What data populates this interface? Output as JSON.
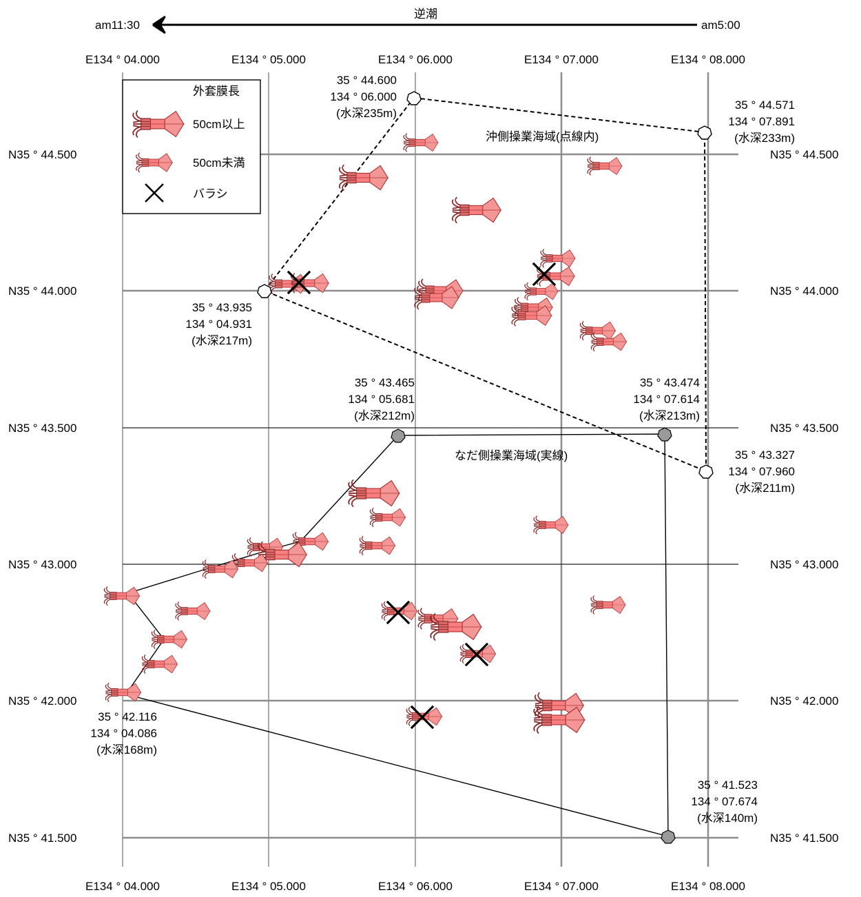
{
  "header": {
    "current_label": "逆潮",
    "left_time": "am11:30",
    "right_time": "am5:00"
  },
  "axes": {
    "x_ticks": [
      "E134°04.000",
      "E134°05.000",
      "E134°06.000",
      "E134°07.000",
      "E134°08.000"
    ],
    "x_ticks_display": [
      "E134 ° 04.000",
      "E134 ° 05.000",
      "E134 ° 06.000",
      "E134 ° 07.000",
      "E134 ° 08.000"
    ],
    "y_ticks_display": [
      "N35 ° 44.500",
      "N35 ° 44.000",
      "N35 ° 43.500",
      "N35 ° 43.000",
      "N35 ° 42.000",
      "N35 ° 41.500"
    ],
    "y_ticks_right_display": [
      "N35 ° 44.500",
      "N35 ° 44.000",
      "N35 ° 43.500",
      "N35 ° 43.000",
      "N35 ° 42.000",
      "N35 ° 41.500"
    ]
  },
  "legend": {
    "title": "外套膜長",
    "items": [
      {
        "label": "50cm以上",
        "icon": "squid-large-icon"
      },
      {
        "label": "50cm未満",
        "icon": "squid-small-icon"
      },
      {
        "label": "バラシ",
        "icon": "cross-icon"
      }
    ]
  },
  "areas": {
    "offshore_label": "沖側操業海域(点線内)",
    "nearshore_label": "なだ側操業海域(実線)"
  },
  "points": [
    {
      "id": "p1",
      "lines": [
        "35 ° 44.600",
        "134 ° 06.000",
        "(水深235m)"
      ]
    },
    {
      "id": "p2",
      "lines": [
        "35 ° 44.571",
        "134 ° 07.891",
        "(水深233m)"
      ]
    },
    {
      "id": "p3",
      "lines": [
        "35 ° 43.935",
        "134 ° 04.931",
        "(水深217m)"
      ]
    },
    {
      "id": "p4",
      "lines": [
        "35 ° 43.465",
        "134 ° 05.681",
        "(水深212m)"
      ]
    },
    {
      "id": "p5",
      "lines": [
        "35 ° 43.474",
        "134 ° 07.614",
        "(水深213m)"
      ]
    },
    {
      "id": "p6",
      "lines": [
        "35 ° 43.327",
        "134 ° 07.960",
        "(水深211m)"
      ]
    },
    {
      "id": "p7",
      "lines": [
        "35 ° 42.116",
        "134 ° 04.086",
        "(水深168m)"
      ]
    },
    {
      "id": "p8",
      "lines": [
        "35 ° 41.523",
        "134 ° 07.674",
        "(水深140m)"
      ]
    }
  ],
  "colors": {
    "squid_fill": "#f87f7f",
    "squid_dark": "#a83030",
    "grid": "#777777",
    "waypoint_gray": "#9a9a9a"
  }
}
